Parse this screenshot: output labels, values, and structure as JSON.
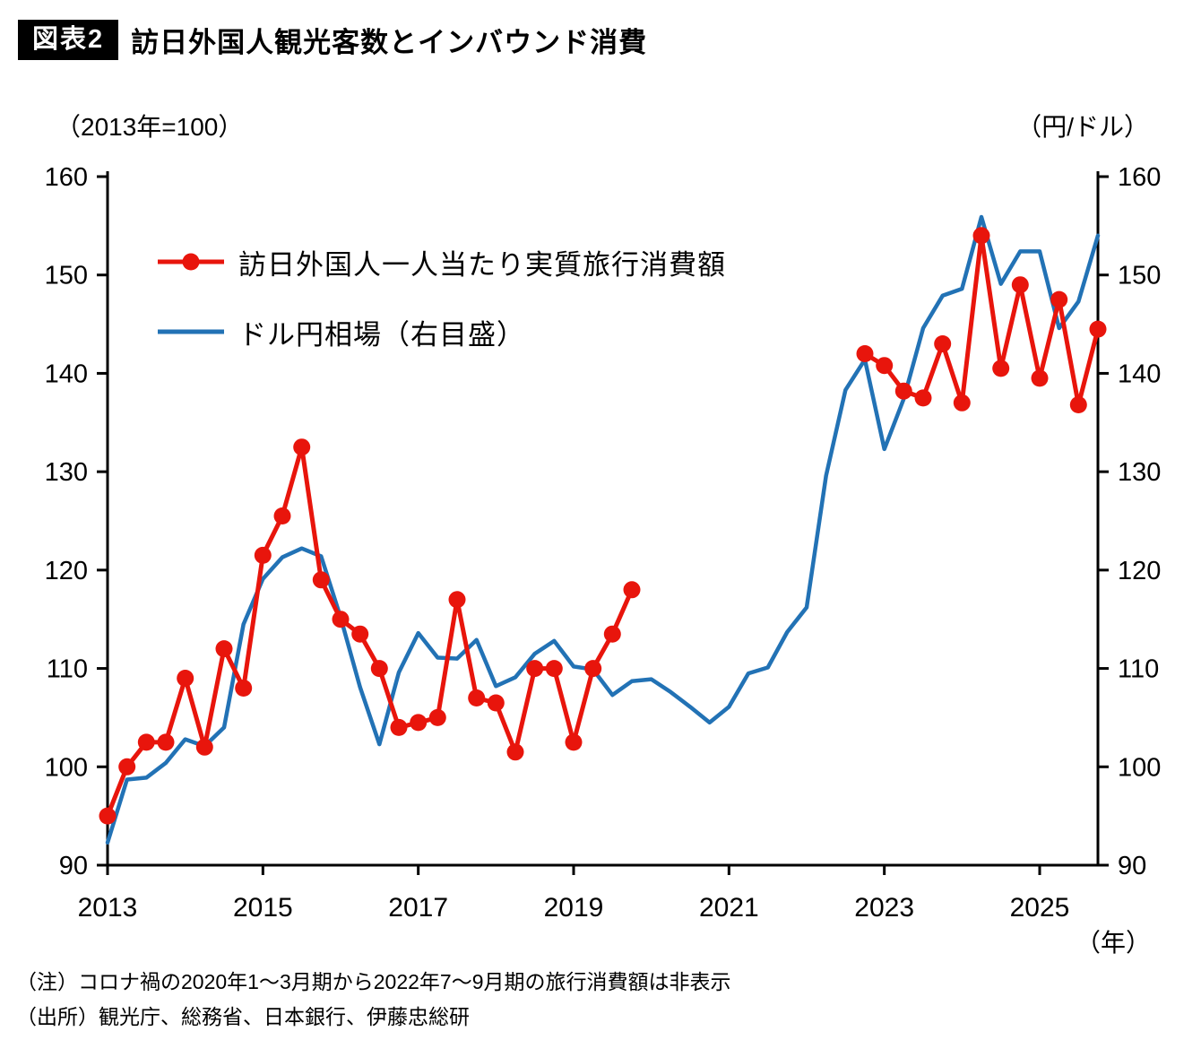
{
  "header": {
    "tag": "図表2",
    "title": "訪日外国人観光客数とインバウンド消費"
  },
  "axes": {
    "left_unit": "（2013年=100）",
    "right_unit": "（円/ドル）",
    "x_unit": "（年）"
  },
  "legend": [
    {
      "label": "訪日外国人一人当たり実質旅行消費額",
      "color": "#e8150c",
      "marker": "circle"
    },
    {
      "label": "ドル円相場（右目盛）",
      "color": "#2272b5",
      "marker": "none"
    }
  ],
  "notes": [
    "（注）コロナ禍の2020年1〜3月期から2022年7〜9月期の旅行消費額は非表示",
    "（出所）観光庁、総務省、日本銀行、伊藤忠総研"
  ],
  "chart_data": {
    "type": "line",
    "title": "訪日外国人観光客数とインバウンド消費",
    "x_start": 2013.0,
    "x_step": 0.25,
    "x_range": [
      2013.0,
      2025.75
    ],
    "x_ticks": [
      2013,
      2015,
      2017,
      2019,
      2021,
      2023,
      2025
    ],
    "x_unit": "（年）",
    "y_left": {
      "label": "（2013年=100）",
      "range": [
        90,
        160
      ],
      "ticks": [
        90,
        100,
        110,
        120,
        130,
        140,
        150,
        160
      ]
    },
    "y_right": {
      "label": "（円/ドル）",
      "range": [
        90,
        160
      ],
      "ticks": [
        90,
        100,
        110,
        120,
        130,
        140,
        150,
        160
      ]
    },
    "grid": false,
    "legend_position": "upper-left-inside",
    "series": [
      {
        "name": "訪日外国人一人当たり実質旅行消費額",
        "axis": "left",
        "color": "#e8150c",
        "marker": "circle",
        "note": "2020Q1-2022Q3 hidden",
        "values": [
          95,
          100,
          102.5,
          102.5,
          109,
          102,
          112,
          108,
          121.5,
          125.5,
          132.5,
          119,
          115,
          113.5,
          110,
          104,
          104.5,
          105,
          117,
          107,
          106.5,
          101.5,
          110,
          110,
          102.5,
          110,
          113.5,
          118,
          null,
          null,
          null,
          null,
          null,
          null,
          null,
          null,
          null,
          null,
          null,
          142,
          140.8,
          138.2,
          137.5,
          143,
          137,
          154,
          140.5,
          149,
          139.5,
          147.5,
          136.8,
          144.5
        ]
      },
      {
        "name": "ドル円相場（右目盛）",
        "axis": "right",
        "color": "#2272b5",
        "marker": "none",
        "values": [
          92.3,
          98.7,
          98.9,
          100.4,
          102.8,
          102.1,
          104,
          114.5,
          119.1,
          121.3,
          122.2,
          121.4,
          115.2,
          108.1,
          102.3,
          109.6,
          113.6,
          111.1,
          111,
          112.9,
          108.2,
          109.1,
          111.5,
          112.8,
          110.2,
          109.9,
          107.3,
          108.7,
          108.9,
          107.6,
          106.1,
          104.5,
          106.1,
          109.5,
          110.1,
          113.7,
          116.2,
          129.6,
          138.3,
          141.4,
          132.3,
          137.4,
          144.6,
          147.9,
          148.6,
          155.9,
          149.1,
          152.4,
          152.4,
          144.6,
          147.3,
          154
        ]
      }
    ]
  }
}
